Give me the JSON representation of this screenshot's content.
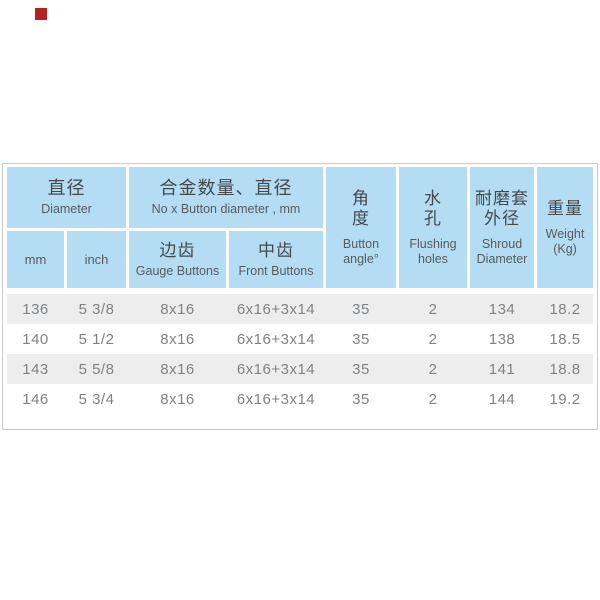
{
  "page": {
    "marker_color": "#b5241c"
  },
  "table": {
    "colors": {
      "header_bg": "#b4ddf3",
      "stripe": "#ededed",
      "border": "#cccccc",
      "header_text": "#45494e",
      "data_text": "#7f8386"
    },
    "header": {
      "diameter_group": {
        "zh": "直径",
        "en": "Diameter"
      },
      "alloy_group": {
        "zh": "合金数量、直径",
        "en": "No x Button diameter , mm"
      },
      "sub_mm": "mm",
      "sub_inch": "inch",
      "gauge": {
        "zh": "边齿",
        "en": "Gauge Buttons"
      },
      "front": {
        "zh": "中齿",
        "en": "Front Buttons"
      },
      "angle": {
        "zh": "角\n度",
        "en": "Button\nangle°"
      },
      "flushing": {
        "zh": "水\n孔",
        "en": "Flushing\nholes"
      },
      "shroud": {
        "zh": "耐磨套\n外径",
        "en": "Shroud\nDiameter"
      },
      "weight": {
        "zh": "重量",
        "en": "Weight\n(Kg)"
      }
    },
    "rows": [
      {
        "mm": "136",
        "inch": "5 3/8",
        "gauge": "8x16",
        "front": "6x16+3x14",
        "angle": "35",
        "flushing": "2",
        "shroud": "134",
        "weight": "18.2"
      },
      {
        "mm": "140",
        "inch": "5 1/2",
        "gauge": "8x16",
        "front": "6x16+3x14",
        "angle": "35",
        "flushing": "2",
        "shroud": "138",
        "weight": "18.5"
      },
      {
        "mm": "143",
        "inch": "5 5/8",
        "gauge": "8x16",
        "front": "6x16+3x14",
        "angle": "35",
        "flushing": "2",
        "shroud": "141",
        "weight": "18.8"
      },
      {
        "mm": "146",
        "inch": "5 3/4",
        "gauge": "8x16",
        "front": "6x16+3x14",
        "angle": "35",
        "flushing": "2",
        "shroud": "144",
        "weight": "19.2"
      }
    ]
  }
}
